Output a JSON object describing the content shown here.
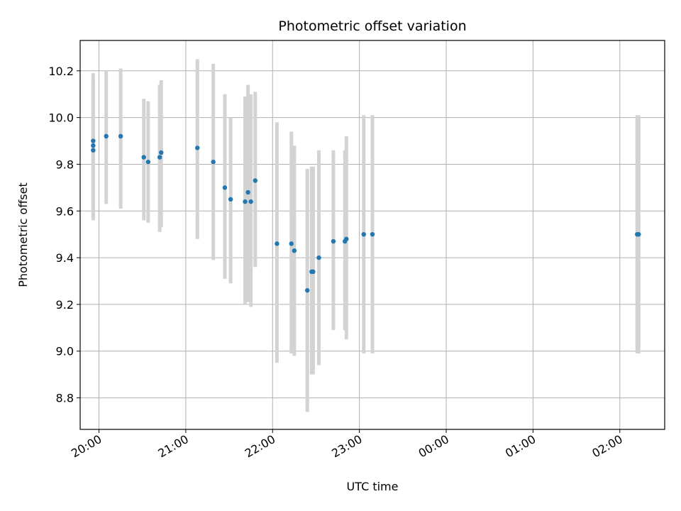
{
  "chart_data": {
    "type": "scatter",
    "title": "Photometric offset variation",
    "xlabel": "UTC time",
    "ylabel": "Photometric offset",
    "grid": true,
    "x_axis_type": "time (HH:MM, crossing midnight)",
    "xlim": [
      "19:47",
      "02:31"
    ],
    "ylim": [
      8.665,
      10.33
    ],
    "xticks": [
      "20:00",
      "21:00",
      "22:00",
      "23:00",
      "00:00",
      "01:00",
      "02:00"
    ],
    "yticks": [
      "8.8",
      "9.0",
      "9.2",
      "9.4",
      "9.6",
      "9.8",
      "10.0",
      "10.2"
    ],
    "colors": {
      "point": "#1f77b4",
      "errorbar": "#d3d3d3",
      "grid": "#b0b0b0"
    },
    "series": [
      {
        "error_bars": true,
        "points": [
          {
            "x": "19:56",
            "y": 9.9,
            "ylow": 9.63,
            "yhigh": 10.16
          },
          {
            "x": "19:56",
            "y": 9.88,
            "ylow": 9.57,
            "yhigh": 10.19
          },
          {
            "x": "19:56",
            "y": 9.86,
            "ylow": 9.56,
            "yhigh": 10.15
          },
          {
            "x": "20:05",
            "y": 9.92,
            "ylow": 9.63,
            "yhigh": 10.2
          },
          {
            "x": "20:15",
            "y": 9.92,
            "ylow": 9.61,
            "yhigh": 10.21
          },
          {
            "x": "20:31",
            "y": 9.83,
            "ylow": 9.56,
            "yhigh": 10.08
          },
          {
            "x": "20:34",
            "y": 9.81,
            "ylow": 9.55,
            "yhigh": 10.07
          },
          {
            "x": "20:42",
            "y": 9.83,
            "ylow": 9.51,
            "yhigh": 10.14
          },
          {
            "x": "20:43",
            "y": 9.85,
            "ylow": 9.53,
            "yhigh": 10.16
          },
          {
            "x": "21:08",
            "y": 9.87,
            "ylow": 9.48,
            "yhigh": 10.25
          },
          {
            "x": "21:19",
            "y": 9.81,
            "ylow": 9.39,
            "yhigh": 10.23
          },
          {
            "x": "21:27",
            "y": 9.7,
            "ylow": 9.31,
            "yhigh": 10.1
          },
          {
            "x": "21:31",
            "y": 9.65,
            "ylow": 9.29,
            "yhigh": 10.0
          },
          {
            "x": "21:41",
            "y": 9.64,
            "ylow": 9.2,
            "yhigh": 10.09
          },
          {
            "x": "21:43",
            "y": 9.68,
            "ylow": 9.21,
            "yhigh": 10.14
          },
          {
            "x": "21:45",
            "y": 9.64,
            "ylow": 9.19,
            "yhigh": 10.1
          },
          {
            "x": "21:48",
            "y": 9.73,
            "ylow": 9.36,
            "yhigh": 10.11
          },
          {
            "x": "22:03",
            "y": 9.46,
            "ylow": 8.95,
            "yhigh": 9.98
          },
          {
            "x": "22:13",
            "y": 9.46,
            "ylow": 8.99,
            "yhigh": 9.94
          },
          {
            "x": "22:15",
            "y": 9.43,
            "ylow": 8.98,
            "yhigh": 9.88
          },
          {
            "x": "22:24",
            "y": 9.26,
            "ylow": 8.74,
            "yhigh": 9.78
          },
          {
            "x": "22:27",
            "y": 9.34,
            "ylow": 8.9,
            "yhigh": 9.79
          },
          {
            "x": "22:28",
            "y": 9.34,
            "ylow": 8.9,
            "yhigh": 9.79
          },
          {
            "x": "22:32",
            "y": 9.4,
            "ylow": 8.94,
            "yhigh": 9.86
          },
          {
            "x": "22:42",
            "y": 9.47,
            "ylow": 9.09,
            "yhigh": 9.86
          },
          {
            "x": "22:50",
            "y": 9.47,
            "ylow": 9.09,
            "yhigh": 9.86
          },
          {
            "x": "22:51",
            "y": 9.48,
            "ylow": 9.05,
            "yhigh": 9.92
          },
          {
            "x": "23:03",
            "y": 9.5,
            "ylow": 8.99,
            "yhigh": 10.01
          },
          {
            "x": "23:09",
            "y": 9.5,
            "ylow": 8.99,
            "yhigh": 10.01
          },
          {
            "x": "02:12",
            "y": 9.5,
            "ylow": 8.99,
            "yhigh": 10.01
          },
          {
            "x": "02:13",
            "y": 9.5,
            "ylow": 8.99,
            "yhigh": 10.01
          }
        ]
      }
    ]
  }
}
